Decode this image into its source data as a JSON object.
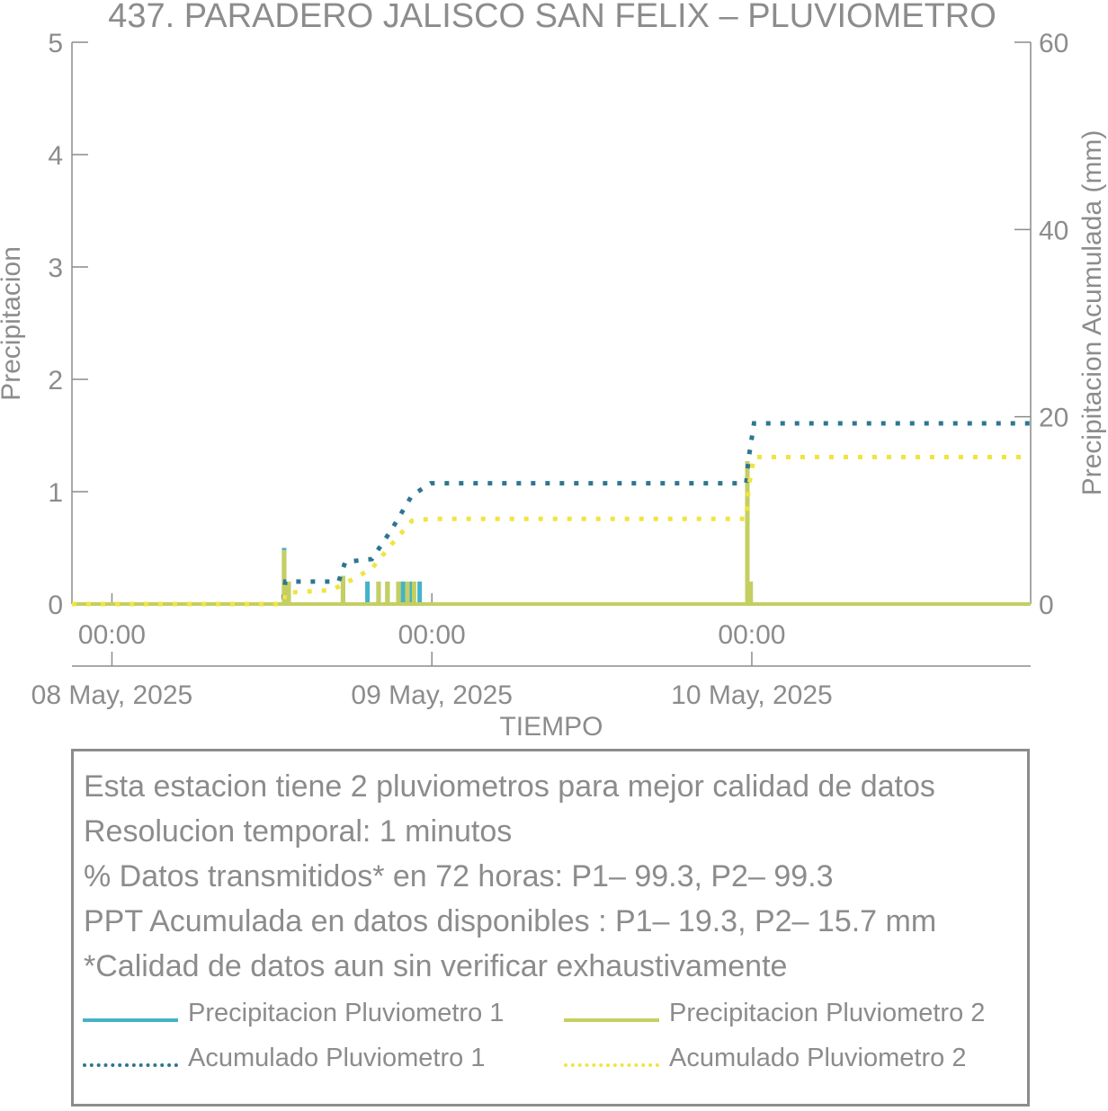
{
  "chart_data": {
    "type": "line",
    "title": "437. PARADERO JALISCO SAN FELIX – PLUVIOMETRO",
    "xlabel": "TIEMPO",
    "ylabel_left": "Precipitacion",
    "ylabel_right": "Precipitacion Acumulada (mm)",
    "ylim_left": [
      0,
      5
    ],
    "ylim_right": [
      0,
      60
    ],
    "yticks_left": [
      "0",
      "1",
      "2",
      "3",
      "4",
      "5"
    ],
    "yticks_right": [
      "0",
      "20",
      "40",
      "60"
    ],
    "xlim": [
      "2025-05-07 21:00",
      "2025-05-10 20:55"
    ],
    "xticks": [
      {
        "time": "00:00",
        "date": "08 May, 2025",
        "at": "2025-05-08 00:00"
      },
      {
        "time": "00:00",
        "date": "09 May, 2025",
        "at": "2025-05-09 00:00"
      },
      {
        "time": "00:00",
        "date": "10 May, 2025",
        "at": "2025-05-10 00:00"
      }
    ],
    "grid": false,
    "series": [
      {
        "name": "Precipitacion Pluviometro 1",
        "axis": "left",
        "style": "solid",
        "color": "#45b3c6",
        "points": [
          [
            "2025-05-08 12:55",
            0.5
          ],
          [
            "2025-05-08 13:15",
            0.2
          ],
          [
            "2025-05-08 17:20",
            0.25
          ],
          [
            "2025-05-08 19:10",
            0.2
          ],
          [
            "2025-05-08 20:00",
            0.2
          ],
          [
            "2025-05-08 20:40",
            0.2
          ],
          [
            "2025-05-08 21:30",
            0.2
          ],
          [
            "2025-05-08 21:50",
            0.2
          ],
          [
            "2025-05-08 22:25",
            0.2
          ],
          [
            "2025-05-08 23:05",
            0.2
          ],
          [
            "2025-05-09 23:40",
            1.27
          ]
        ]
      },
      {
        "name": "Precipitacion Pluviometro 2",
        "axis": "left",
        "style": "solid",
        "color": "#c5cf61",
        "points": [
          [
            "2025-05-08 12:55",
            0.48
          ],
          [
            "2025-05-08 13:15",
            0.2
          ],
          [
            "2025-05-08 17:20",
            0.25
          ],
          [
            "2025-05-08 20:00",
            0.2
          ],
          [
            "2025-05-08 20:40",
            0.2
          ],
          [
            "2025-05-08 21:30",
            0.2
          ],
          [
            "2025-05-08 22:10",
            0.2
          ],
          [
            "2025-05-08 22:40",
            0.2
          ],
          [
            "2025-05-09 23:40",
            1.27
          ],
          [
            "2025-05-09 23:55",
            0.2
          ]
        ]
      },
      {
        "name": "Acumulado Pluviometro 1",
        "axis": "right",
        "style": "dotted",
        "color": "#2e7690",
        "points": [
          [
            "2025-05-07 21:00",
            0
          ],
          [
            "2025-05-08 12:50",
            0
          ],
          [
            "2025-05-08 13:00",
            2.4
          ],
          [
            "2025-05-08 17:00",
            2.4
          ],
          [
            "2025-05-08 17:30",
            4.5
          ],
          [
            "2025-05-08 19:30",
            4.8
          ],
          [
            "2025-05-08 21:00",
            8.0
          ],
          [
            "2025-05-08 22:30",
            11.6
          ],
          [
            "2025-05-08 23:55",
            12.9
          ],
          [
            "2025-05-09 23:35",
            12.9
          ],
          [
            "2025-05-09 23:45",
            15.5
          ],
          [
            "2025-05-10 00:10",
            19.3
          ],
          [
            "2025-05-10 20:55",
            19.3
          ]
        ]
      },
      {
        "name": "Acumulado Pluviometro 2",
        "axis": "right",
        "style": "dotted",
        "color": "#f0e442",
        "points": [
          [
            "2025-05-07 21:00",
            0
          ],
          [
            "2025-05-08 12:50",
            0
          ],
          [
            "2025-05-08 13:00",
            1.2
          ],
          [
            "2025-05-08 16:30",
            1.5
          ],
          [
            "2025-05-08 18:00",
            2.6
          ],
          [
            "2025-05-08 19:30",
            3.8
          ],
          [
            "2025-05-08 21:00",
            6.4
          ],
          [
            "2025-05-08 22:30",
            8.9
          ],
          [
            "2025-05-08 23:55",
            9.1
          ],
          [
            "2025-05-09 23:35",
            9.1
          ],
          [
            "2025-05-09 23:45",
            12.4
          ],
          [
            "2025-05-10 00:10",
            15.7
          ],
          [
            "2025-05-10 20:55",
            15.7
          ]
        ]
      }
    ],
    "legend_position": "bottom-box"
  },
  "info": {
    "lines": [
      "Esta estacion tiene 2 pluviometros para mejor calidad de datos",
      "Resolucion temporal: 1 minutos",
      "% Datos transmitidos* en 72 horas: P1– 99.3, P2– 99.3",
      "PPT Acumulada en datos disponibles : P1– 19.3, P2– 15.7 mm",
      "*Calidad de datos aun sin verificar exhaustivamente"
    ]
  },
  "legend": {
    "p1_label": "Precipitacion Pluviometro 1",
    "p2_label": "Precipitacion Pluviometro 2",
    "a1_label": "Acumulado Pluviometro 1",
    "a2_label": "Acumulado Pluviometro 2"
  },
  "colors": {
    "axis": "#8c8c8c",
    "p1": "#45b3c6",
    "p2": "#c5cf61",
    "a1": "#2e7690",
    "a2": "#f0e442"
  }
}
